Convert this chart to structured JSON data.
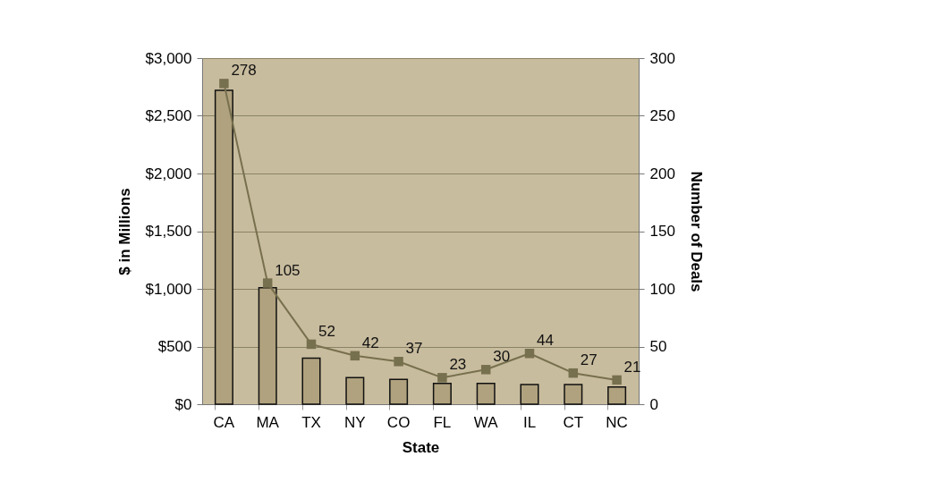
{
  "chart_data": {
    "type": "bar",
    "xlabel": "State",
    "ylabel": "$ in Millions",
    "y2label": "Number of Deals",
    "categories": [
      "CA",
      "MA",
      "TX",
      "NY",
      "CO",
      "FL",
      "WA",
      "IL",
      "CT",
      "NC"
    ],
    "series": [
      {
        "color": "#b0a27e",
        "values": [
          2720,
          1010,
          400,
          230,
          215,
          180,
          180,
          170,
          170,
          150
        ]
      },
      {
        "type": "line",
        "axis": "y2",
        "color": "#77704e",
        "marker": "square",
        "values": [
          278,
          105,
          52,
          42,
          37,
          23,
          30,
          44,
          27,
          21
        ],
        "value_labels": [
          "278",
          "105",
          "52",
          "42",
          "37",
          "23",
          "30",
          "44",
          "27",
          "21"
        ]
      }
    ],
    "ylim": [
      0,
      3000
    ],
    "yticks": [
      {
        "value": 0,
        "label": "$0"
      },
      {
        "value": 500,
        "label": "$500"
      },
      {
        "value": 1000,
        "label": "$1,000"
      },
      {
        "value": 1500,
        "label": "$1,500"
      },
      {
        "value": 2000,
        "label": "$2,000"
      },
      {
        "value": 2500,
        "label": "$2,500"
      },
      {
        "value": 3000,
        "label": "$3,000"
      }
    ],
    "y2lim": [
      0,
      300
    ],
    "y2ticks": [
      0,
      50,
      100,
      150,
      200,
      250,
      300
    ],
    "grid": "y"
  }
}
